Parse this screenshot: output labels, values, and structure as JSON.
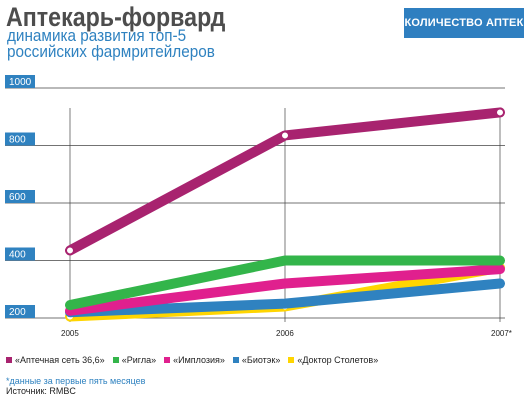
{
  "header": {
    "title": "Аптекарь-форвард",
    "subtitle_line1": "динамика развития топ-5",
    "subtitle_line2": "российских фармритейлеров",
    "badge": "КОЛИЧЕСТВО АПТЕК"
  },
  "chart_data": {
    "type": "line",
    "categories": [
      "2005",
      "2006",
      "2007*"
    ],
    "ylim": [
      200,
      1000
    ],
    "yticks": [
      "200",
      "400",
      "600",
      "800",
      "1000"
    ],
    "grid": true,
    "legend_position": "bottom",
    "series": [
      {
        "name": "«Аптечная сеть 36,6»",
        "color": "#a8236f",
        "values": [
          435,
          835,
          915
        ],
        "markers": true
      },
      {
        "name": "«Ригла»",
        "color": "#33b54a",
        "values": [
          245,
          400,
          400
        ],
        "markers": false
      },
      {
        "name": "«Имплозия»",
        "color": "#e0208e",
        "values": [
          225,
          320,
          370
        ],
        "markers": false
      },
      {
        "name": "«Биотэк»",
        "color": "#2f82c0",
        "values": [
          220,
          250,
          320
        ],
        "markers": false
      },
      {
        "name": "«Доктор Столетов»",
        "color": "#ffd500",
        "values": [
          205,
          240,
          375
        ],
        "markers": true
      }
    ]
  },
  "notes": {
    "footnote": "*данные за первые пять месяцев",
    "source": "Источник: RMBC"
  }
}
